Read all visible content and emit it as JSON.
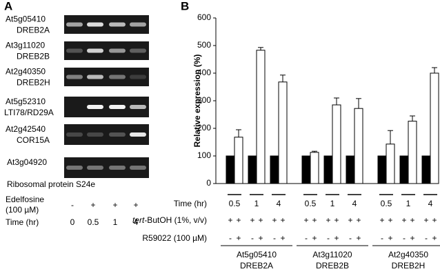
{
  "panel_a": {
    "label": "A",
    "genes": [
      {
        "id": "At5g05410",
        "name": "DREB2A"
      },
      {
        "id": "At3g11020",
        "name": "DREB2B"
      },
      {
        "id": "At2g40350",
        "name": "DREB2H"
      },
      {
        "id": "At5g52310",
        "name": "LTI78/RD29A"
      },
      {
        "id": "At2g42540",
        "name": "COR15A"
      },
      {
        "id": "At3g04920",
        "name": "Ribosomal protein S24e"
      }
    ],
    "treatment": {
      "label": [
        "Edelfosine",
        "(100 µM)"
      ],
      "values": [
        "-",
        "+",
        "+",
        "+"
      ]
    },
    "time": {
      "label": "Time (hr)",
      "values": [
        "0",
        "0.5",
        "1",
        "4"
      ]
    }
  },
  "chart_data": {
    "type": "bar",
    "panel_label": "B",
    "ylabel": "Relative expression (%)",
    "ylim": [
      0,
      600
    ],
    "yticks": [
      0,
      100,
      200,
      300,
      400,
      500,
      600
    ],
    "category_label": "Time (hr)",
    "categories": [
      "0.5",
      "1",
      "4",
      "0.5",
      "1",
      "4",
      "0.5",
      "1",
      "4"
    ],
    "series": [
      {
        "color": "#000000",
        "values": [
          100,
          100,
          100,
          100,
          100,
          100,
          100,
          100,
          100
        ]
      },
      {
        "color": "#ffffff",
        "values": [
          168,
          483,
          368,
          113,
          285,
          272,
          143,
          226,
          400
        ],
        "errors": [
          27,
          10,
          25,
          4,
          25,
          36,
          49,
          19,
          20
        ]
      }
    ],
    "tert_butoh": {
      "label_italic": "tert",
      "label": "-ButOH (1%, v/v)",
      "values": [
        "+",
        "+",
        "+",
        "+",
        "+",
        "+",
        "+",
        "+",
        "+",
        "+",
        "+",
        "+",
        "+",
        "+",
        "+",
        "+",
        "+",
        "+"
      ]
    },
    "r59022": {
      "label": "R59022 (100 µM)",
      "values": [
        "-",
        "+",
        "-",
        "+",
        "-",
        "+",
        "-",
        "+",
        "-",
        "+",
        "-",
        "+",
        "-",
        "+",
        "-",
        "+",
        "-",
        "+"
      ]
    },
    "groups": [
      {
        "id": "At5g05410",
        "name": "DREB2A"
      },
      {
        "id": "At3g11020",
        "name": "DREB2B"
      },
      {
        "id": "At2g40350",
        "name": "DREB2H"
      }
    ]
  }
}
